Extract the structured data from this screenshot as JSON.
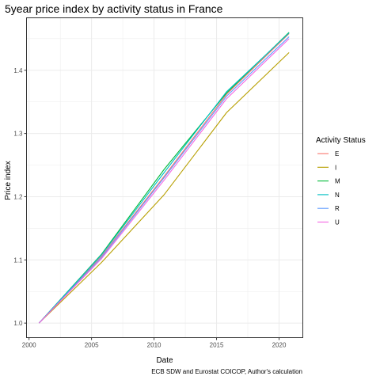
{
  "chart_data": {
    "type": "line",
    "title": "5year price index by activity status in France",
    "xlabel": "Date",
    "ylabel": "Price index",
    "caption": "ECB SDW and Eurostat COICOP, Author's calculation",
    "x_ticks": [
      "2000",
      "2005",
      "2010",
      "2015",
      "2020"
    ],
    "x_tick_values": [
      2000,
      2005,
      2010,
      2015,
      2020
    ],
    "y_ticks": [
      "1.0",
      "1.1",
      "1.2",
      "1.3",
      "1.4"
    ],
    "y_tick_values": [
      1.0,
      1.1,
      1.2,
      1.3,
      1.4
    ],
    "xlim": [
      1999.8,
      2021.9
    ],
    "ylim": [
      0.977,
      1.483
    ],
    "grid": true,
    "legend_title": "Activity Status",
    "legend_position": "right",
    "x": [
      2000.8,
      2005.8,
      2010.8,
      2015.8,
      2020.8
    ],
    "series": [
      {
        "name": "E",
        "color": "#F8766D",
        "values": [
          1.0,
          1.106,
          1.232,
          1.362,
          1.458
        ]
      },
      {
        "name": "I",
        "color": "#B79F00",
        "values": [
          1.0,
          1.096,
          1.203,
          1.333,
          1.428
        ]
      },
      {
        "name": "M",
        "color": "#00BA38",
        "values": [
          1.0,
          1.109,
          1.243,
          1.364,
          1.46
        ]
      },
      {
        "name": "N",
        "color": "#00BFC4",
        "values": [
          1.0,
          1.108,
          1.238,
          1.366,
          1.459
        ]
      },
      {
        "name": "R",
        "color": "#619CFF",
        "values": [
          1.0,
          1.104,
          1.23,
          1.359,
          1.453
        ]
      },
      {
        "name": "U",
        "color": "#F564E3",
        "values": [
          1.0,
          1.102,
          1.226,
          1.355,
          1.45
        ]
      }
    ]
  }
}
